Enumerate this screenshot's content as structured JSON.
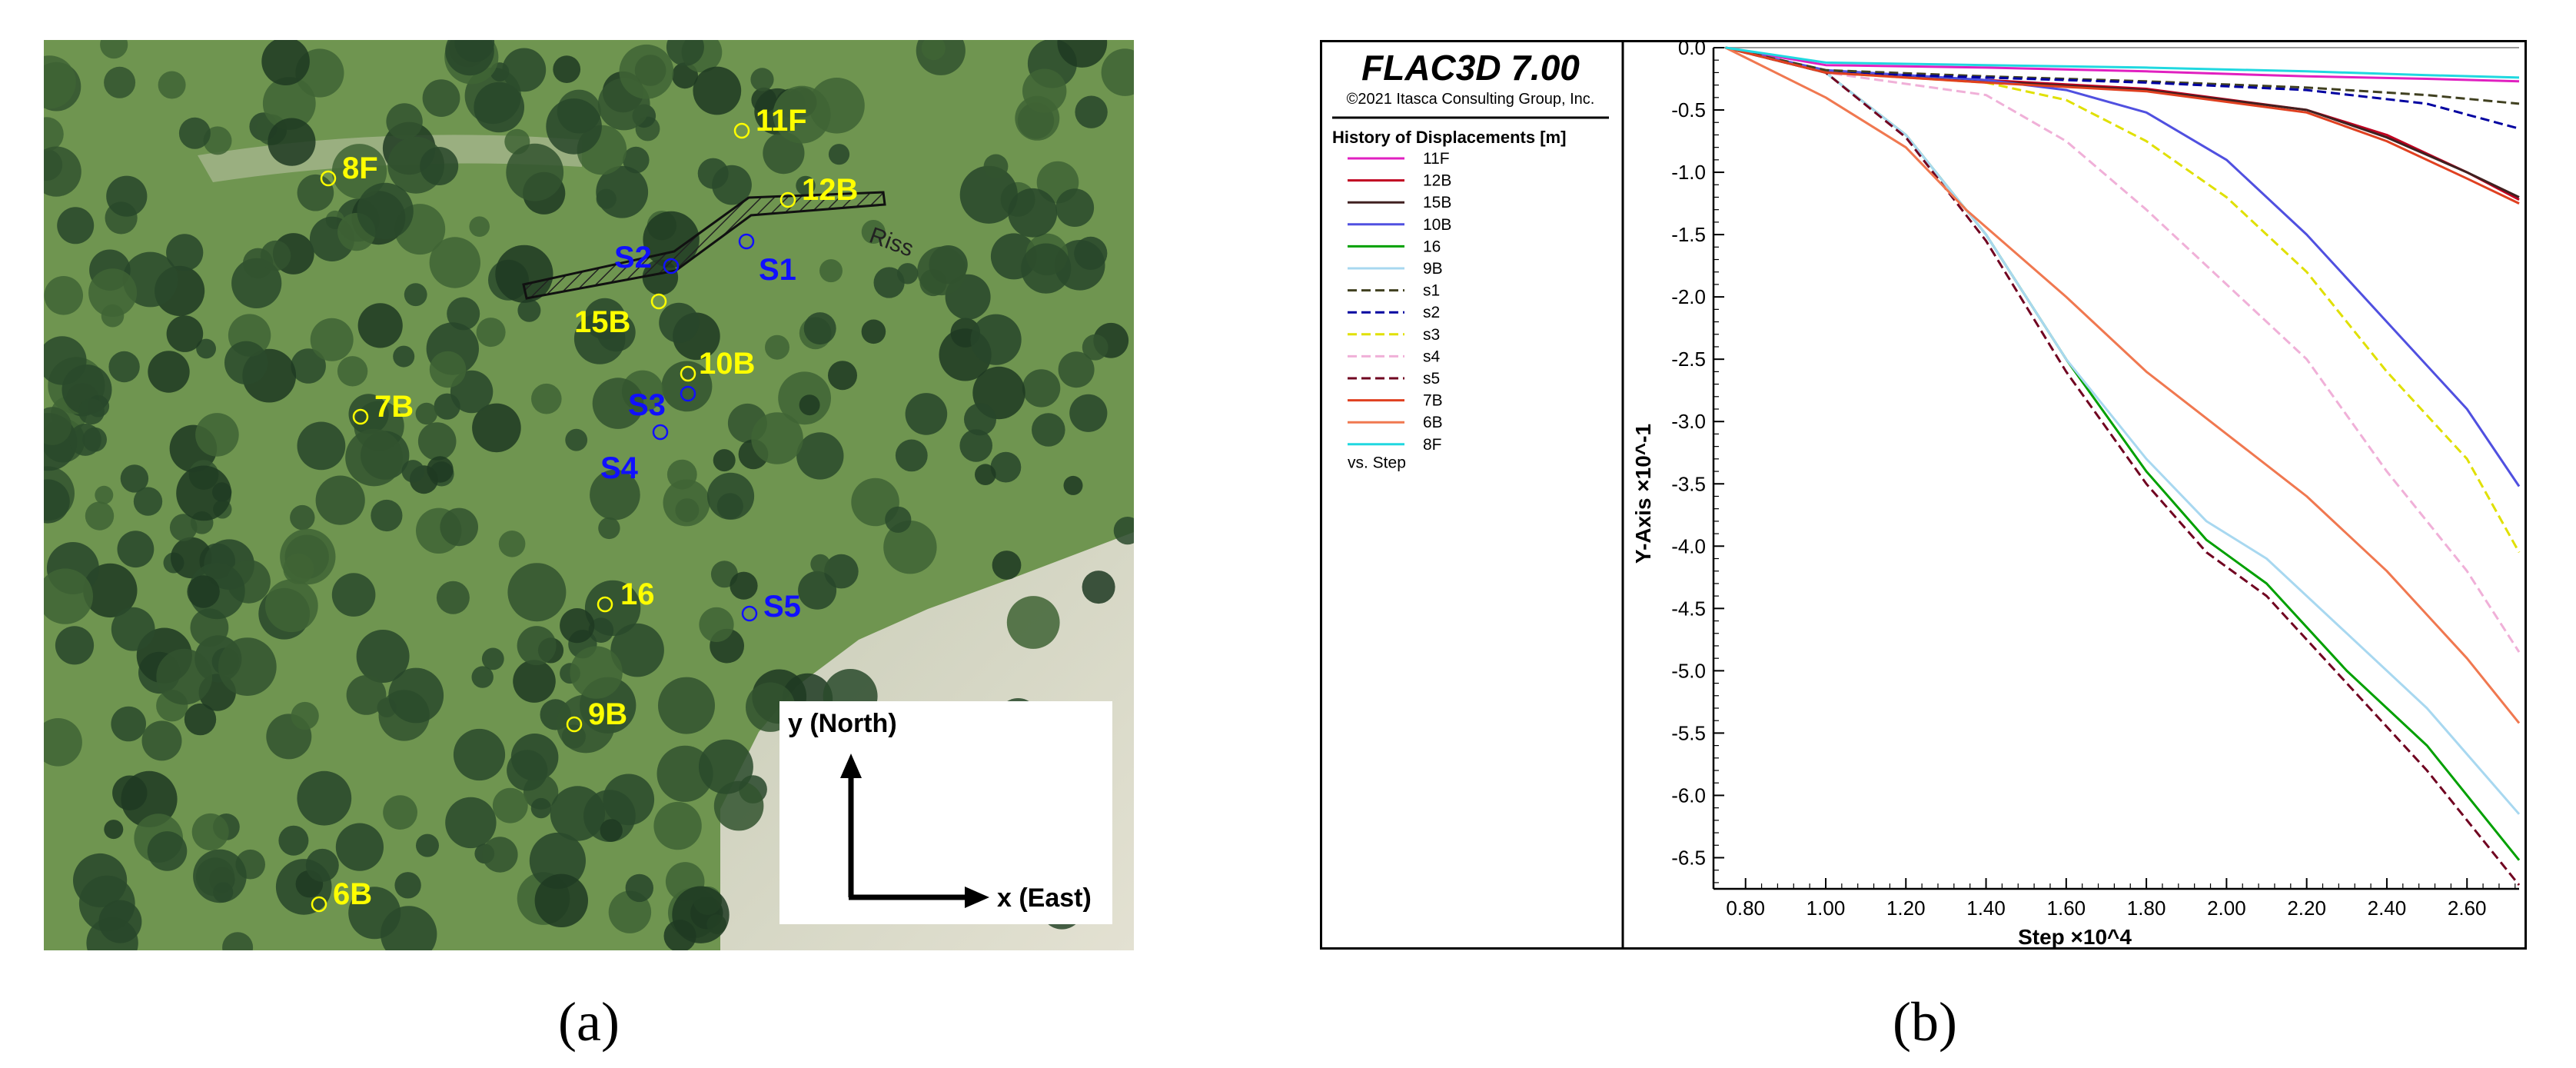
{
  "captions": {
    "a": "(a)",
    "b": "(b)"
  },
  "map": {
    "points": [
      {
        "label": "11F",
        "kind": "yellow"
      },
      {
        "label": "12B",
        "kind": "yellow"
      },
      {
        "label": "8F",
        "kind": "yellow"
      },
      {
        "label": "15B",
        "kind": "yellow"
      },
      {
        "label": "10B",
        "kind": "yellow"
      },
      {
        "label": "7B",
        "kind": "yellow"
      },
      {
        "label": "16",
        "kind": "yellow"
      },
      {
        "label": "9B",
        "kind": "yellow"
      },
      {
        "label": "6B",
        "kind": "yellow"
      },
      {
        "label": "S1",
        "kind": "blue"
      },
      {
        "label": "S2",
        "kind": "blue"
      },
      {
        "label": "S3",
        "kind": "blue"
      },
      {
        "label": "S4",
        "kind": "blue"
      },
      {
        "label": "S5",
        "kind": "blue"
      }
    ],
    "crack_label": "Riss",
    "axis_y_label": "y (North)",
    "axis_x_label": "x (East)",
    "colors": {
      "yellow": "#ffff00",
      "blue": "#1010ff"
    }
  },
  "chart_data": {
    "type": "line",
    "header_title": "FLAC3D 7.00",
    "copyright": "©2021 Itasca Consulting Group, Inc.",
    "legend_title": "History of Displacements [m]",
    "legend_footer": "vs. Step",
    "xlabel": "Step ×10^4",
    "ylabel": "Y-Axis ×10^-1",
    "xlim": [
      0.72,
      2.73
    ],
    "ylim": [
      -6.75,
      0
    ],
    "x_ticks": [
      "0.80",
      "1.00",
      "1.20",
      "1.40",
      "1.60",
      "1.80",
      "2.00",
      "2.20",
      "2.40",
      "2.60"
    ],
    "y_ticks": [
      "0.0",
      "-0.5",
      "-1.0",
      "-1.5",
      "-2.0",
      "-2.5",
      "-3.0",
      "-3.5",
      "-4.0",
      "-4.5",
      "-5.0",
      "-5.5",
      "-6.0",
      "-6.5"
    ],
    "legend_placement": "left",
    "series": [
      {
        "name": "11F",
        "color": "#e020c0",
        "dash": "solid",
        "x": [
          0.75,
          1.0,
          1.4,
          1.8,
          2.2,
          2.5,
          2.73
        ],
        "y": [
          0,
          -0.14,
          -0.16,
          -0.19,
          -0.23,
          -0.25,
          -0.27
        ]
      },
      {
        "name": "12B",
        "color": "#c00020",
        "dash": "solid",
        "x": [
          0.75,
          1.0,
          1.4,
          1.8,
          2.2,
          2.4,
          2.6,
          2.73
        ],
        "y": [
          0,
          -0.2,
          -0.26,
          -0.33,
          -0.5,
          -0.7,
          -1.0,
          -1.22
        ]
      },
      {
        "name": "15B",
        "color": "#402020",
        "dash": "solid",
        "x": [
          0.75,
          1.0,
          1.4,
          1.8,
          2.2,
          2.4,
          2.6,
          2.73
        ],
        "y": [
          0,
          -0.2,
          -0.27,
          -0.34,
          -0.5,
          -0.72,
          -1.0,
          -1.2
        ]
      },
      {
        "name": "10B",
        "color": "#5050e0",
        "dash": "solid",
        "x": [
          0.75,
          1.0,
          1.4,
          1.6,
          1.8,
          2.0,
          2.2,
          2.4,
          2.6,
          2.73
        ],
        "y": [
          0,
          -0.18,
          -0.26,
          -0.34,
          -0.52,
          -0.9,
          -1.5,
          -2.2,
          -2.9,
          -3.52
        ]
      },
      {
        "name": "16",
        "color": "#00a000",
        "dash": "solid",
        "x": [
          0.75,
          1.0,
          1.2,
          1.4,
          1.6,
          1.8,
          1.95,
          2.1,
          2.3,
          2.5,
          2.73
        ],
        "y": [
          0,
          -0.2,
          -0.7,
          -1.5,
          -2.5,
          -3.4,
          -3.95,
          -4.3,
          -5.0,
          -5.6,
          -6.52
        ]
      },
      {
        "name": "9B",
        "color": "#a8d8f0",
        "dash": "solid",
        "x": [
          0.75,
          1.0,
          1.2,
          1.4,
          1.6,
          1.8,
          1.95,
          2.1,
          2.3,
          2.5,
          2.73
        ],
        "y": [
          0,
          -0.2,
          -0.7,
          -1.5,
          -2.5,
          -3.3,
          -3.8,
          -4.1,
          -4.7,
          -5.3,
          -6.15
        ]
      },
      {
        "name": "s1",
        "color": "#404020",
        "dash": "dashed",
        "x": [
          0.75,
          1.0,
          1.4,
          1.8,
          2.2,
          2.5,
          2.73
        ],
        "y": [
          0,
          -0.18,
          -0.23,
          -0.27,
          -0.32,
          -0.38,
          -0.45
        ]
      },
      {
        "name": "s2",
        "color": "#0000a0",
        "dash": "dashed",
        "x": [
          0.75,
          1.0,
          1.4,
          1.8,
          2.2,
          2.5,
          2.73
        ],
        "y": [
          0,
          -0.2,
          -0.24,
          -0.28,
          -0.34,
          -0.45,
          -0.65
        ]
      },
      {
        "name": "s3",
        "color": "#e0e000",
        "dash": "dashed",
        "x": [
          0.75,
          1.0,
          1.4,
          1.6,
          1.8,
          2.0,
          2.2,
          2.4,
          2.6,
          2.73
        ],
        "y": [
          0,
          -0.2,
          -0.28,
          -0.42,
          -0.75,
          -1.2,
          -1.8,
          -2.6,
          -3.3,
          -4.05
        ]
      },
      {
        "name": "s4",
        "color": "#f0b0d8",
        "dash": "dashed",
        "x": [
          0.75,
          1.0,
          1.4,
          1.6,
          1.8,
          2.0,
          2.2,
          2.4,
          2.6,
          2.73
        ],
        "y": [
          0,
          -0.2,
          -0.38,
          -0.75,
          -1.3,
          -1.9,
          -2.5,
          -3.4,
          -4.2,
          -4.85
        ]
      },
      {
        "name": "s5",
        "color": "#700020",
        "dash": "dashed",
        "x": [
          0.75,
          1.0,
          1.2,
          1.4,
          1.6,
          1.8,
          1.95,
          2.1,
          2.3,
          2.5,
          2.73
        ],
        "y": [
          0,
          -0.2,
          -0.72,
          -1.55,
          -2.6,
          -3.5,
          -4.05,
          -4.4,
          -5.1,
          -5.8,
          -6.72
        ]
      },
      {
        "name": "7B",
        "color": "#e04020",
        "dash": "solid",
        "x": [
          0.75,
          1.0,
          1.4,
          1.8,
          2.2,
          2.4,
          2.6,
          2.73
        ],
        "y": [
          0,
          -0.2,
          -0.28,
          -0.35,
          -0.52,
          -0.75,
          -1.05,
          -1.25
        ]
      },
      {
        "name": "6B",
        "color": "#f07850",
        "dash": "solid",
        "x": [
          0.75,
          1.0,
          1.2,
          1.35,
          1.6,
          1.8,
          2.0,
          2.2,
          2.4,
          2.6,
          2.73
        ],
        "y": [
          0,
          -0.4,
          -0.8,
          -1.3,
          -2.0,
          -2.6,
          -3.1,
          -3.6,
          -4.2,
          -4.9,
          -5.42
        ]
      },
      {
        "name": "8F",
        "color": "#20d8e0",
        "dash": "solid",
        "x": [
          0.75,
          1.0,
          1.4,
          1.8,
          2.2,
          2.5,
          2.73
        ],
        "y": [
          0,
          -0.12,
          -0.14,
          -0.16,
          -0.19,
          -0.22,
          -0.24
        ]
      }
    ]
  }
}
